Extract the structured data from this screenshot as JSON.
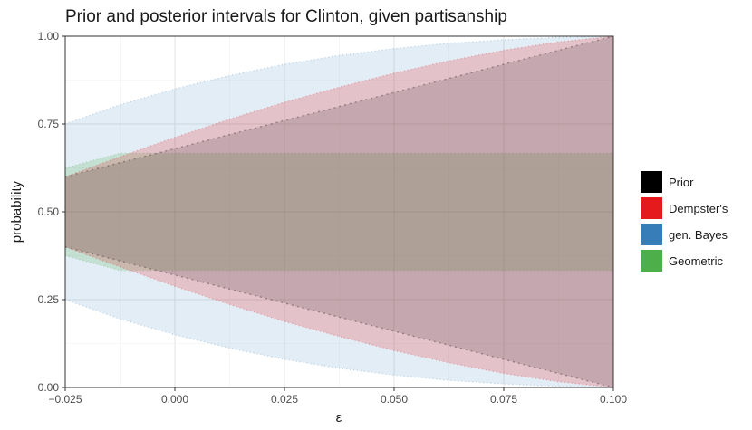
{
  "chart_data": {
    "type": "area",
    "title": "Prior and posterior intervals for Clinton, given partisanship",
    "xlabel": "ε",
    "ylabel": "probability",
    "xlim": [
      -0.025,
      0.1
    ],
    "ylim": [
      0,
      1
    ],
    "x_ticks": [
      "−0.025",
      "0.000",
      "0.025",
      "0.050",
      "0.075",
      "0.100"
    ],
    "y_ticks": [
      "0.00",
      "0.25",
      "0.50",
      "0.75",
      "1.00"
    ],
    "x_tick_values": [
      -0.025,
      0,
      0.025,
      0.05,
      0.075,
      0.1
    ],
    "y_tick_values": [
      0,
      0.25,
      0.5,
      0.75,
      1
    ],
    "grid": true,
    "legend_position": "right",
    "x": [
      -0.025,
      -0.0125,
      0,
      0.0125,
      0.025,
      0.0375,
      0.05,
      0.0625,
      0.075,
      0.0875,
      0.1
    ],
    "series": [
      {
        "name": "Prior",
        "color": "#000000",
        "lower": [
          0.4,
          0.36,
          0.32,
          0.28,
          0.24,
          0.2,
          0.16,
          0.12,
          0.08,
          0.04,
          0.0
        ],
        "upper": [
          0.6,
          0.64,
          0.68,
          0.72,
          0.76,
          0.8,
          0.84,
          0.88,
          0.92,
          0.96,
          1.0
        ]
      },
      {
        "name": "Dempster's",
        "color": "#E41A1C",
        "lower": [
          0.4,
          0.343,
          0.288,
          0.236,
          0.188,
          0.145,
          0.105,
          0.07,
          0.04,
          0.016,
          0.0
        ],
        "upper": [
          0.6,
          0.657,
          0.712,
          0.764,
          0.812,
          0.855,
          0.895,
          0.93,
          0.96,
          0.984,
          1.0
        ]
      },
      {
        "name": "gen. Bayes",
        "color": "#377EB8",
        "lower": [
          0.25,
          0.195,
          0.15,
          0.112,
          0.08,
          0.055,
          0.035,
          0.02,
          0.01,
          0.003,
          0.0
        ],
        "upper": [
          0.75,
          0.805,
          0.85,
          0.888,
          0.92,
          0.945,
          0.965,
          0.98,
          0.99,
          0.997,
          1.0
        ]
      },
      {
        "name": "Geometric",
        "color": "#4DAF4A",
        "lower": [
          0.375,
          0.333,
          0.333,
          0.333,
          0.333,
          0.333,
          0.333,
          0.333,
          0.333,
          0.333,
          0.333
        ],
        "upper": [
          0.625,
          0.667,
          0.667,
          0.667,
          0.667,
          0.667,
          0.667,
          0.667,
          0.667,
          0.667,
          0.667
        ]
      }
    ]
  }
}
